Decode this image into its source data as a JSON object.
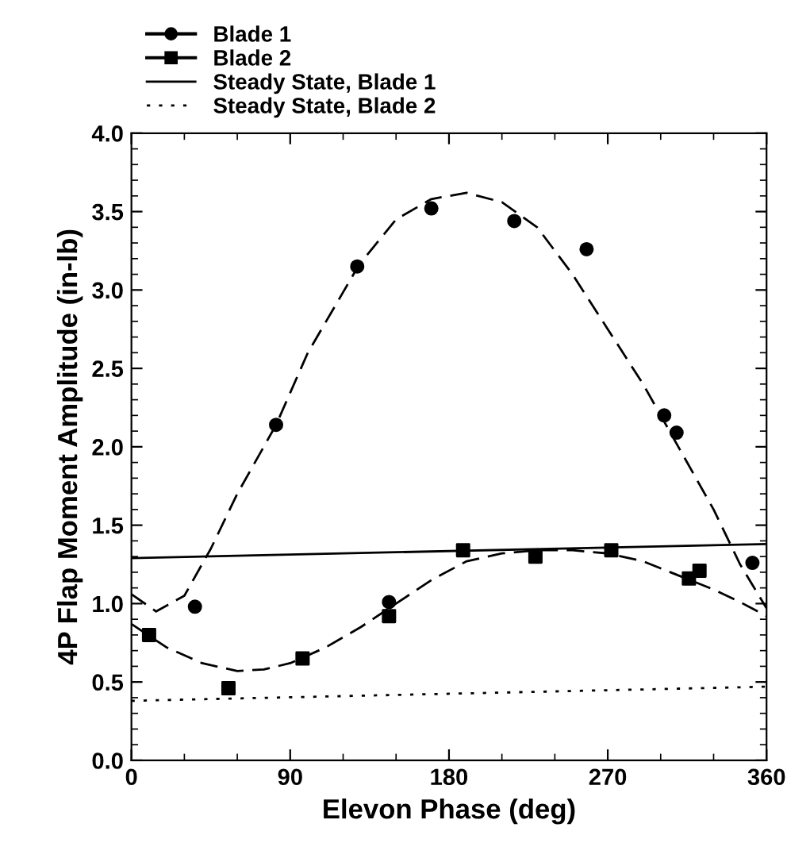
{
  "chart_data": {
    "type": "scatter",
    "xlabel": "Elevon Phase (deg)",
    "ylabel": "4P Flap Moment Amplitude (in-lb)",
    "xlim": [
      0,
      360
    ],
    "xticks": [
      0,
      90,
      180,
      270,
      360
    ],
    "ylim": [
      0.0,
      4.0
    ],
    "yticks": [
      {
        "value": 0.0,
        "label": "0.0"
      },
      {
        "value": 0.5,
        "label": "0.5"
      },
      {
        "value": 1.0,
        "label": "1.0"
      },
      {
        "value": 1.5,
        "label": "1.5"
      },
      {
        "value": 2.0,
        "label": "2.0"
      },
      {
        "value": 2.5,
        "label": "2.5"
      },
      {
        "value": 3.0,
        "label": "3.0"
      },
      {
        "value": 3.5,
        "label": "3.5"
      },
      {
        "value": 4.0,
        "label": "4.0"
      }
    ],
    "grid": false,
    "legend": "top left",
    "series": [
      {
        "name": "Blade 1",
        "marker": "circle",
        "color": "#000000",
        "x": [
          36,
          82,
          128,
          146,
          170,
          217,
          258,
          302,
          309,
          352
        ],
        "values": [
          0.98,
          2.14,
          3.15,
          1.01,
          3.52,
          3.44,
          3.26,
          2.2,
          2.09,
          1.26
        ]
      },
      {
        "name": "Blade 2",
        "marker": "square",
        "color": "#000000",
        "x": [
          10,
          55,
          97,
          146,
          188,
          229,
          272,
          316,
          322
        ],
        "values": [
          0.8,
          0.46,
          0.65,
          0.92,
          1.34,
          1.3,
          1.34,
          1.16,
          1.21
        ]
      },
      {
        "name": "Steady State, Blade 1",
        "type": "line",
        "line_style": "solid",
        "marker": "none",
        "color": "#000000",
        "x": [
          0,
          360
        ],
        "values": [
          1.29,
          1.38
        ]
      },
      {
        "name": "Steady State, Blade 2",
        "type": "line",
        "line_style": "dotted",
        "marker": "none",
        "color": "#000000",
        "x": [
          0,
          360
        ],
        "values": [
          0.38,
          0.47
        ]
      },
      {
        "type": "line",
        "line_style": "dashed",
        "marker": "none",
        "color": "#000000",
        "x": [
          0,
          14,
          30,
          45,
          60,
          82,
          100,
          129,
          150,
          170,
          190,
          210,
          230,
          250,
          270,
          290,
          310,
          330,
          345,
          360
        ],
        "values": [
          1.06,
          0.95,
          1.05,
          1.35,
          1.7,
          2.14,
          2.6,
          3.16,
          3.45,
          3.58,
          3.62,
          3.56,
          3.4,
          3.1,
          2.75,
          2.4,
          2.0,
          1.6,
          1.25,
          0.97
        ]
      },
      {
        "type": "line",
        "line_style": "dashed",
        "marker": "none",
        "color": "#000000",
        "x": [
          0,
          20,
          40,
          60,
          75,
          90,
          110,
          130,
          150,
          170,
          190,
          210,
          230,
          250,
          270,
          290,
          310,
          330,
          345,
          360
        ],
        "values": [
          0.87,
          0.72,
          0.62,
          0.57,
          0.58,
          0.62,
          0.72,
          0.85,
          1.0,
          1.15,
          1.27,
          1.32,
          1.34,
          1.34,
          1.32,
          1.27,
          1.18,
          1.09,
          1.01,
          0.92
        ]
      }
    ]
  }
}
